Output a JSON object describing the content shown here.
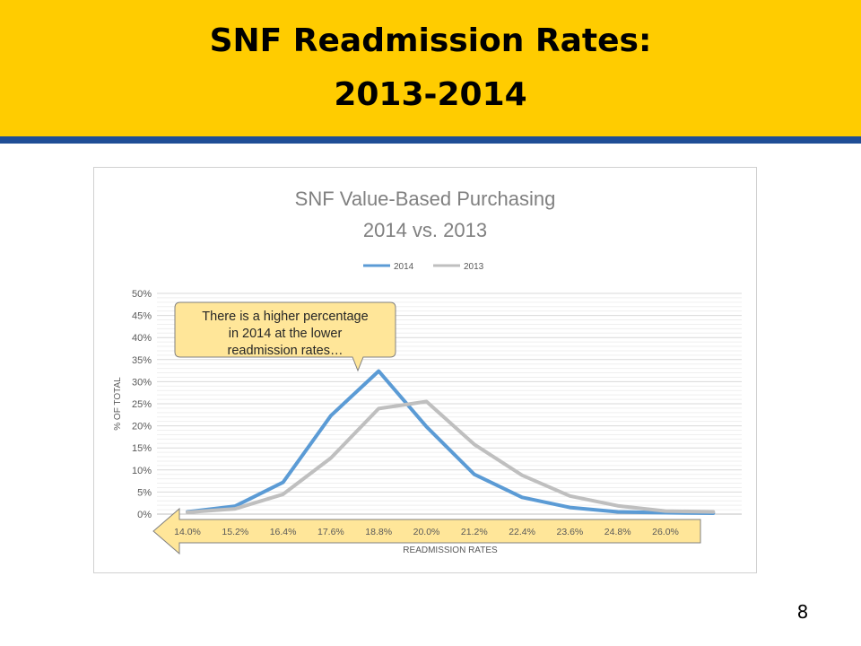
{
  "slide": {
    "title_line1": "SNF Readmission Rates:",
    "title_line2": "2013-2014",
    "page_number": "8",
    "banner_color": "#FFCC00",
    "accent_color": "#1F4E96"
  },
  "chart_data": {
    "type": "line",
    "title": "SNF Value-Based Purchasing",
    "subtitle": "2014 vs. 2013",
    "xlabel": "READMISSION RATES",
    "ylabel": "% OF TOTAL",
    "categories": [
      "14.0%",
      "15.2%",
      "16.4%",
      "17.6%",
      "18.8%",
      "20.0%",
      "21.2%",
      "22.4%",
      "23.6%",
      "24.8%",
      "26.0%",
      ""
    ],
    "y_ticks": [
      "0%",
      "5%",
      "10%",
      "15%",
      "20%",
      "25%",
      "30%",
      "35%",
      "40%",
      "45%",
      "50%"
    ],
    "ylim": [
      0,
      50
    ],
    "grid": true,
    "legend_position": "top",
    "series": [
      {
        "name": "2014",
        "color": "#5B9BD5",
        "values": [
          0.5,
          1.8,
          7.2,
          22.3,
          32.4,
          19.8,
          9.0,
          3.8,
          1.5,
          0.5,
          0.3,
          0.2
        ]
      },
      {
        "name": "2013",
        "color": "#BFBFBF",
        "values": [
          0.4,
          1.2,
          4.5,
          12.7,
          23.9,
          25.5,
          15.8,
          8.8,
          4.1,
          1.9,
          0.7,
          0.5
        ]
      }
    ],
    "annotation": {
      "text_lines": [
        "There is a higher percentage",
        "in 2014 at the lower",
        "readmission rates…"
      ],
      "fill": "#FFE699",
      "stroke": "#808080"
    }
  }
}
